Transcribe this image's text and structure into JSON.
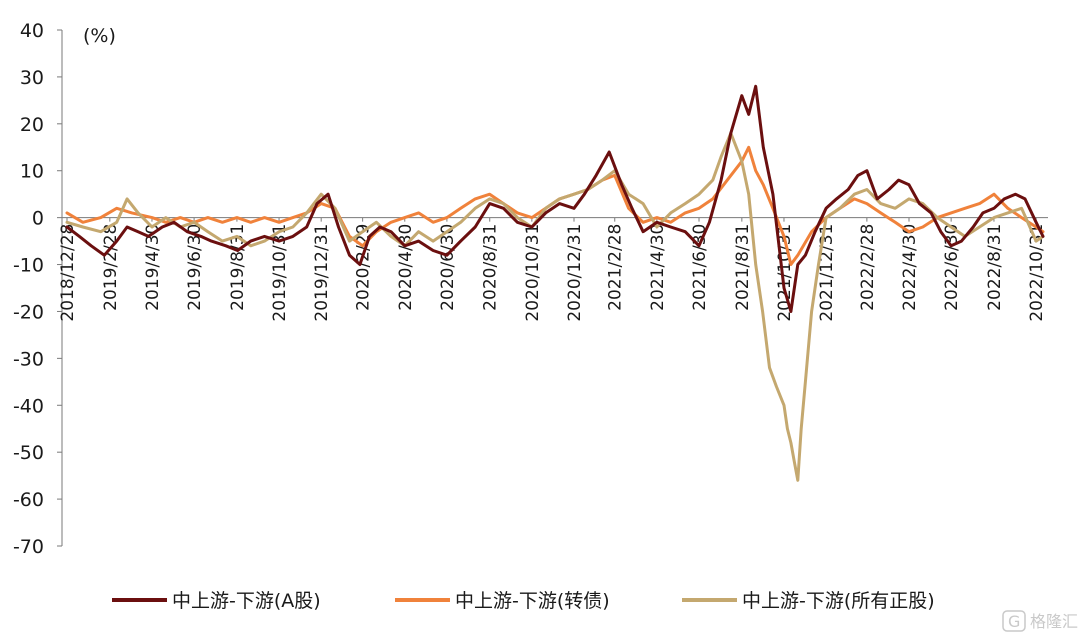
{
  "chart_data": {
    "type": "line",
    "unit_label": "(%)",
    "ylim": [
      -70,
      40
    ],
    "y_ticks": [
      40,
      30,
      20,
      10,
      0,
      -10,
      -20,
      -30,
      -40,
      -50,
      -60,
      -70
    ],
    "x_tick_labels": [
      "2018/12/28",
      "2019/2/28",
      "2019/4/30",
      "2019/6/30",
      "2019/8/31",
      "2019/10/31",
      "2019/12/31",
      "2020/2/29",
      "2020/4/30",
      "2020/6/30",
      "2020/8/31",
      "2020/10/31",
      "2020/12/31",
      "2021/2/28",
      "2021/4/30",
      "2021/6/30",
      "2021/8/31",
      "2021/10/31",
      "2021/12/31",
      "2022/2/28",
      "2022/4/30",
      "2022/6/30",
      "2022/8/31",
      "2022/10/31"
    ],
    "x_tick_dates": [
      "2018-12-28",
      "2019-02-28",
      "2019-04-30",
      "2019-06-30",
      "2019-08-31",
      "2019-10-31",
      "2019-12-31",
      "2020-02-29",
      "2020-04-30",
      "2020-06-30",
      "2020-08-31",
      "2020-10-31",
      "2020-12-31",
      "2021-02-28",
      "2021-04-30",
      "2021-06-30",
      "2021-08-31",
      "2021-10-31",
      "2021-12-31",
      "2022-02-28",
      "2022-04-30",
      "2022-06-30",
      "2022-08-31",
      "2022-10-31"
    ],
    "grid": false,
    "legend_position": "bottom",
    "series": [
      {
        "name": "中上游-下游(A股)",
        "color": "#6b0f0f",
        "x": [
          "2018-12-28",
          "2019-01-15",
          "2019-02-01",
          "2019-02-20",
          "2019-03-10",
          "2019-03-25",
          "2019-04-10",
          "2019-04-25",
          "2019-05-15",
          "2019-06-01",
          "2019-06-20",
          "2019-07-10",
          "2019-07-25",
          "2019-08-15",
          "2019-09-01",
          "2019-09-20",
          "2019-10-10",
          "2019-10-31",
          "2019-11-20",
          "2019-12-10",
          "2019-12-25",
          "2020-01-10",
          "2020-01-25",
          "2020-02-10",
          "2020-02-25",
          "2020-03-10",
          "2020-03-25",
          "2020-04-10",
          "2020-04-30",
          "2020-05-20",
          "2020-06-10",
          "2020-06-30",
          "2020-07-20",
          "2020-08-10",
          "2020-08-31",
          "2020-09-20",
          "2020-10-10",
          "2020-10-31",
          "2020-11-20",
          "2020-12-10",
          "2020-12-31",
          "2021-01-15",
          "2021-02-01",
          "2021-02-20",
          "2021-03-10",
          "2021-03-25",
          "2021-04-10",
          "2021-04-30",
          "2021-05-20",
          "2021-06-10",
          "2021-06-30",
          "2021-07-15",
          "2021-08-01",
          "2021-08-15",
          "2021-08-31",
          "2021-09-10",
          "2021-09-20",
          "2021-10-01",
          "2021-10-15",
          "2021-10-31",
          "2021-11-10",
          "2021-11-20",
          "2021-12-01",
          "2021-12-15",
          "2021-12-31",
          "2022-01-15",
          "2022-02-01",
          "2022-02-15",
          "2022-02-28",
          "2022-03-15",
          "2022-04-01",
          "2022-04-15",
          "2022-04-30",
          "2022-05-15",
          "2022-06-01",
          "2022-06-15",
          "2022-06-30",
          "2022-07-15",
          "2022-08-01",
          "2022-08-15",
          "2022-08-31",
          "2022-09-15",
          "2022-10-01",
          "2022-10-15",
          "2022-10-31",
          "2022-11-10"
        ],
        "y": [
          -2,
          -4,
          -6,
          -8,
          -5,
          -2,
          -3,
          -4,
          -2,
          -1,
          -3,
          -4,
          -5,
          -6,
          -7,
          -5,
          -4,
          -5,
          -4,
          -2,
          3,
          5,
          -2,
          -8,
          -10,
          -4,
          -2,
          -3,
          -6,
          -5,
          -7,
          -8,
          -5,
          -2,
          3,
          2,
          -1,
          -2,
          1,
          3,
          2,
          5,
          9,
          14,
          7,
          2,
          -3,
          -1,
          -2,
          -3,
          -6,
          -1,
          8,
          18,
          26,
          22,
          28,
          15,
          5,
          -15,
          -20,
          -10,
          -8,
          -3,
          2,
          4,
          6,
          9,
          10,
          4,
          6,
          8,
          7,
          3,
          1,
          -3,
          -6,
          -5,
          -2,
          1,
          2,
          4,
          5,
          4,
          -1,
          -4
        ]
      },
      {
        "name": "中上游-下游(转债)",
        "color": "#f0823b",
        "x": [
          "2018-12-28",
          "2019-01-20",
          "2019-02-15",
          "2019-03-10",
          "2019-04-01",
          "2019-04-30",
          "2019-05-20",
          "2019-06-10",
          "2019-06-30",
          "2019-07-20",
          "2019-08-10",
          "2019-08-31",
          "2019-09-20",
          "2019-10-10",
          "2019-10-31",
          "2019-11-20",
          "2019-12-10",
          "2019-12-31",
          "2020-01-20",
          "2020-02-10",
          "2020-02-29",
          "2020-03-20",
          "2020-04-10",
          "2020-04-30",
          "2020-05-20",
          "2020-06-10",
          "2020-06-30",
          "2020-07-20",
          "2020-08-10",
          "2020-08-31",
          "2020-09-20",
          "2020-10-10",
          "2020-10-31",
          "2020-11-20",
          "2020-12-10",
          "2020-12-31",
          "2021-01-20",
          "2021-02-10",
          "2021-02-28",
          "2021-03-20",
          "2021-04-10",
          "2021-04-30",
          "2021-05-20",
          "2021-06-10",
          "2021-06-30",
          "2021-07-20",
          "2021-08-10",
          "2021-08-31",
          "2021-09-10",
          "2021-09-20",
          "2021-10-01",
          "2021-10-15",
          "2021-10-31",
          "2021-11-10",
          "2021-11-20",
          "2021-12-10",
          "2021-12-31",
          "2022-01-20",
          "2022-02-10",
          "2022-02-28",
          "2022-03-20",
          "2022-04-10",
          "2022-04-30",
          "2022-05-20",
          "2022-06-10",
          "2022-06-30",
          "2022-07-20",
          "2022-08-10",
          "2022-08-31",
          "2022-09-20",
          "2022-10-10",
          "2022-10-31",
          "2022-11-10"
        ],
        "y": [
          1,
          -1,
          0,
          2,
          1,
          0,
          -1,
          0,
          -1,
          0,
          -1,
          0,
          -1,
          0,
          -1,
          0,
          1,
          3,
          2,
          -4,
          -6,
          -3,
          -1,
          0,
          1,
          -1,
          0,
          2,
          4,
          5,
          3,
          1,
          0,
          2,
          4,
          5,
          6,
          8,
          9,
          2,
          -1,
          0,
          -1,
          1,
          2,
          4,
          8,
          12,
          15,
          10,
          7,
          2,
          -4,
          -10,
          -8,
          -3,
          0,
          2,
          4,
          3,
          1,
          -1,
          -3,
          -2,
          0,
          1,
          2,
          3,
          5,
          2,
          0,
          -2,
          -3
        ]
      },
      {
        "name": "中上游-下游(所有正股)",
        "color": "#c4a86f",
        "x": [
          "2018-12-28",
          "2019-01-20",
          "2019-02-15",
          "2019-03-10",
          "2019-03-25",
          "2019-04-10",
          "2019-04-30",
          "2019-05-20",
          "2019-06-10",
          "2019-06-30",
          "2019-07-20",
          "2019-08-10",
          "2019-08-31",
          "2019-09-20",
          "2019-10-10",
          "2019-10-31",
          "2019-11-20",
          "2019-12-10",
          "2019-12-31",
          "2020-01-20",
          "2020-02-10",
          "2020-02-29",
          "2020-03-20",
          "2020-04-10",
          "2020-04-30",
          "2020-05-20",
          "2020-06-10",
          "2020-06-30",
          "2020-07-20",
          "2020-08-10",
          "2020-08-31",
          "2020-09-20",
          "2020-10-10",
          "2020-10-31",
          "2020-11-20",
          "2020-12-10",
          "2020-12-31",
          "2021-01-20",
          "2021-02-10",
          "2021-02-28",
          "2021-03-20",
          "2021-04-10",
          "2021-04-30",
          "2021-05-20",
          "2021-06-10",
          "2021-06-30",
          "2021-07-20",
          "2021-08-01",
          "2021-08-15",
          "2021-08-31",
          "2021-09-10",
          "2021-09-20",
          "2021-09-30",
          "2021-10-10",
          "2021-10-20",
          "2021-10-31",
          "2021-11-05",
          "2021-11-10",
          "2021-11-15",
          "2021-11-20",
          "2021-11-25",
          "2021-12-01",
          "2021-12-10",
          "2021-12-20",
          "2021-12-31",
          "2022-01-20",
          "2022-02-10",
          "2022-02-28",
          "2022-03-20",
          "2022-04-10",
          "2022-04-30",
          "2022-05-20",
          "2022-06-10",
          "2022-06-30",
          "2022-07-20",
          "2022-08-10",
          "2022-08-31",
          "2022-09-20",
          "2022-10-10",
          "2022-10-31",
          "2022-11-10"
        ],
        "y": [
          -1,
          -2,
          -3,
          -1,
          4,
          1,
          -2,
          0,
          -2,
          -1,
          -3,
          -5,
          -4,
          -6,
          -5,
          -3,
          -2,
          1,
          5,
          2,
          -5,
          -3,
          -1,
          -4,
          -6,
          -3,
          -5,
          -3,
          -1,
          2,
          4,
          3,
          0,
          -2,
          2,
          4,
          5,
          6,
          8,
          10,
          5,
          3,
          -2,
          1,
          3,
          5,
          8,
          13,
          18,
          12,
          5,
          -10,
          -20,
          -32,
          -36,
          -40,
          -45,
          -48,
          -52,
          -56,
          -45,
          -35,
          -20,
          -10,
          0,
          2,
          5,
          6,
          3,
          2,
          4,
          3,
          0,
          -2,
          -4,
          -2,
          0,
          1,
          2,
          -5,
          -4
        ]
      }
    ]
  },
  "watermark": {
    "text": "格隆汇"
  }
}
